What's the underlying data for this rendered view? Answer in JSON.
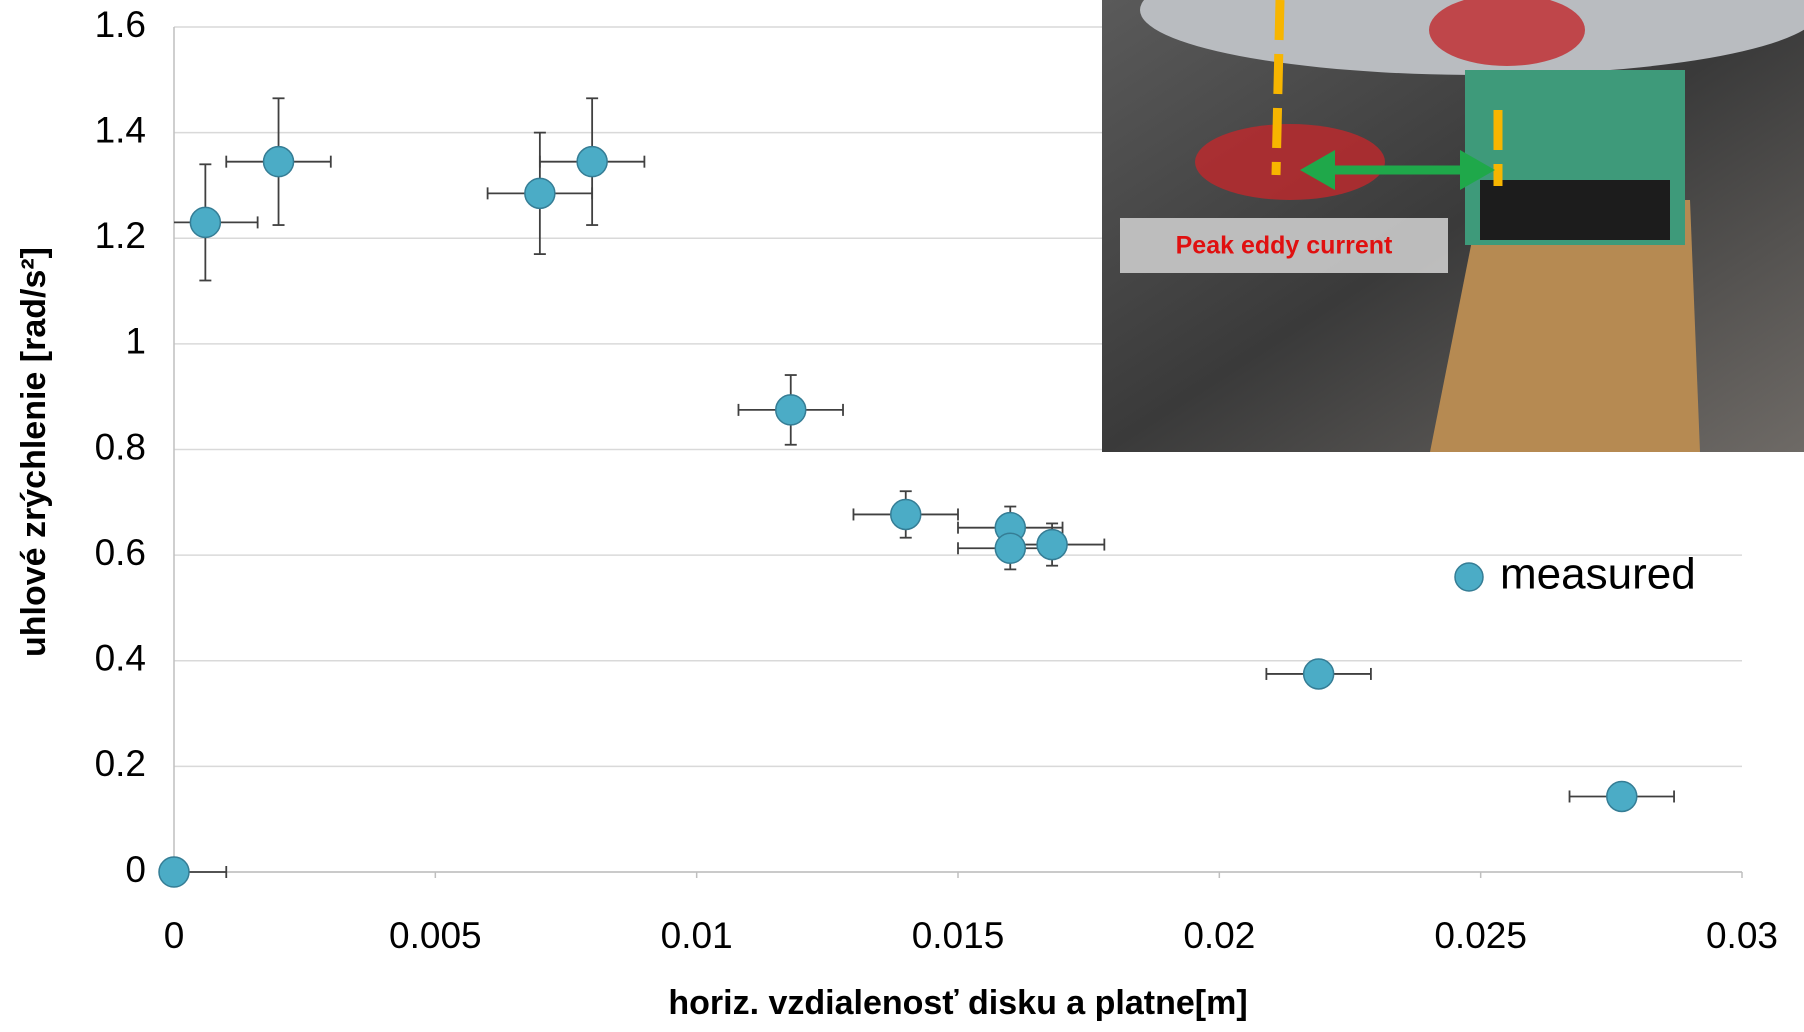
{
  "chart_data": {
    "type": "scatter",
    "x_label": "horiz. vzdialenosť disku a platne[m]",
    "y_label": "uhlové zrýchlenie [rad/s²]",
    "xlim": [
      0,
      0.03
    ],
    "xticks": [
      0,
      0.005,
      0.01,
      0.015,
      0.02,
      0.025,
      0.03
    ],
    "ylim": [
      0,
      1.6
    ],
    "yticks": [
      0,
      0.2,
      0.4,
      0.6,
      0.8,
      1,
      1.2,
      1.4,
      1.6
    ],
    "grid": true,
    "legend": "right",
    "series": [
      {
        "name": "measured",
        "color": "#4bacc6",
        "x": [
          0,
          0.0006,
          0.002,
          0.007,
          0.008,
          0.0118,
          0.014,
          0.016,
          0.016,
          0.0168,
          0.0219,
          0.0277
        ],
        "values": [
          0,
          1.23,
          1.345,
          1.285,
          1.345,
          0.875,
          0.677,
          0.652,
          0.613,
          0.62,
          0.375,
          0.143
        ],
        "x_error": [
          0.001,
          0.001,
          0.001,
          0.001,
          0.001,
          0.001,
          0.001,
          0.001,
          0.001,
          0.001,
          0.001,
          0.001
        ],
        "y_error": [
          0,
          0.11,
          0.12,
          0.115,
          0.12,
          0.066,
          0.044,
          0.04,
          0.04,
          0.04,
          0,
          0
        ]
      }
    ],
    "annotation": "Peak eddy current"
  }
}
